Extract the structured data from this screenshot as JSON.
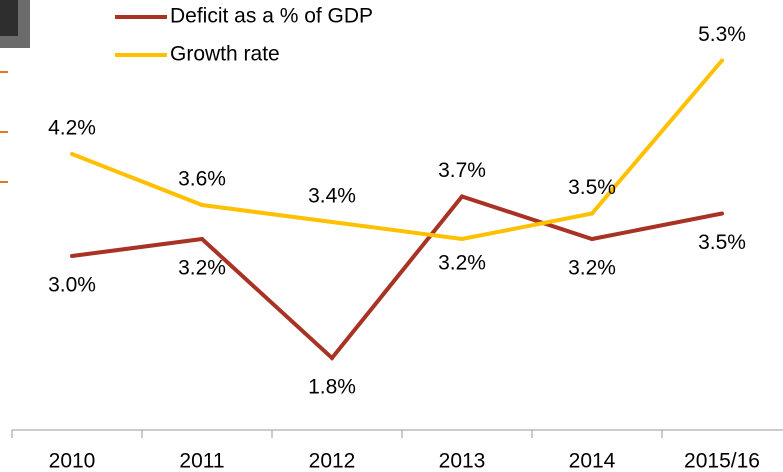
{
  "chart_data": {
    "type": "line",
    "categories": [
      "2010",
      "2011",
      "2012",
      "2013",
      "2014",
      "2015/16"
    ],
    "series": [
      {
        "name": "Deficit as a % of GDP",
        "color": "#a83224",
        "values": [
          3.0,
          3.2,
          1.8,
          3.7,
          3.2,
          3.5
        ],
        "value_labels": [
          "3.0%",
          "3.2%",
          "1.8%",
          "3.7%",
          "3.2%",
          "3.5%"
        ]
      },
      {
        "name": "Growth rate",
        "color": "#ffc000",
        "values": [
          4.2,
          3.6,
          3.4,
          3.2,
          3.5,
          5.3
        ],
        "value_labels": [
          "4.2%",
          "3.6%",
          "3.4%",
          "3.2%",
          "3.5%",
          "5.3%"
        ]
      }
    ],
    "ylim": [
      1.5,
      5.5
    ]
  }
}
